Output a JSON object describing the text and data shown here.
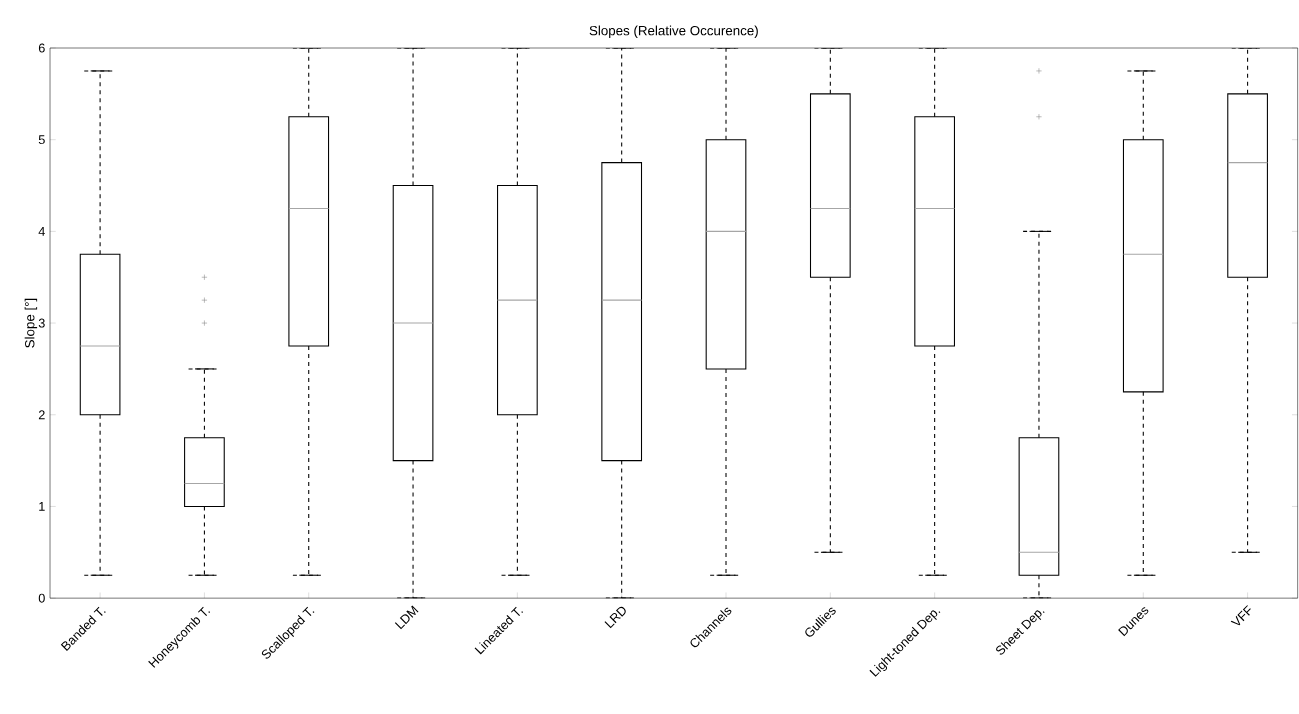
{
  "chart_data": {
    "type": "box",
    "title": "Slopes (Relative Occurence)",
    "ylabel": "Slope [°]",
    "categories": [
      "Banded T.",
      "Honeycomb T.",
      "Scalloped T.",
      "LDM",
      "Lineated T.",
      "LRD",
      "Channels",
      "Gullies",
      "Light-toned Dep.",
      "Sheet Dep.",
      "Dunes",
      "VFF"
    ],
    "boxes": [
      {
        "low": 0.25,
        "q1": 2.0,
        "median": 2.75,
        "q3": 3.75,
        "high": 5.75
      },
      {
        "low": 0.25,
        "q1": 1.0,
        "median": 1.25,
        "q3": 1.75,
        "high": 2.5,
        "outliers": [
          3.0,
          3.25,
          3.5
        ]
      },
      {
        "low": 0.25,
        "q1": 2.75,
        "median": 4.25,
        "q3": 5.25,
        "high": 6.0
      },
      {
        "low": 0.0,
        "q1": 1.5,
        "median": 3.0,
        "q3": 4.5,
        "high": 6.0
      },
      {
        "low": 0.25,
        "q1": 2.0,
        "median": 3.25,
        "q3": 4.5,
        "high": 6.0
      },
      {
        "low": 0.0,
        "q1": 1.5,
        "median": 3.25,
        "q3": 4.75,
        "high": 6.0
      },
      {
        "low": 0.25,
        "q1": 2.5,
        "median": 4.0,
        "q3": 5.0,
        "high": 6.0
      },
      {
        "low": 0.5,
        "q1": 3.5,
        "median": 4.25,
        "q3": 5.5,
        "high": 6.0
      },
      {
        "low": 0.25,
        "q1": 2.75,
        "median": 4.25,
        "q3": 5.25,
        "high": 6.0
      },
      {
        "low": 0.0,
        "q1": 0.25,
        "median": 0.5,
        "q3": 1.75,
        "high": 4.0,
        "outliers": [
          5.25,
          5.75
        ]
      },
      {
        "low": 0.25,
        "q1": 2.25,
        "median": 3.75,
        "q3": 5.0,
        "high": 5.75
      },
      {
        "low": 0.5,
        "q1": 3.5,
        "median": 4.75,
        "q3": 5.5,
        "high": 6.0
      }
    ],
    "ylim": [
      0,
      6
    ],
    "yticks": [
      0,
      1,
      2,
      3,
      4,
      5,
      6
    ]
  }
}
